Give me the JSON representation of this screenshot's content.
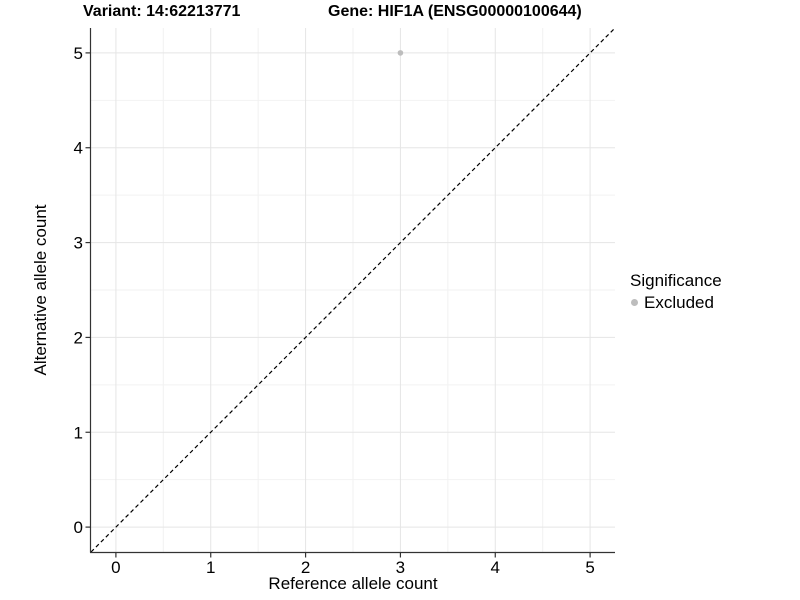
{
  "chart_data": {
    "type": "scatter",
    "title_left": "Variant: 14:62213771",
    "title_right": "Gene: HIF1A (ENSG00000100644)",
    "xlabel": "Reference allele count",
    "ylabel": "Alternative allele count",
    "xlim": [
      -0.2625,
      5.2625
    ],
    "ylim": [
      -0.2625,
      5.2625
    ],
    "xticks": [
      0,
      1,
      2,
      3,
      4,
      5
    ],
    "yticks": [
      0,
      1,
      2,
      3,
      4,
      5
    ],
    "grid": "major+minor",
    "identity_line": {
      "slope": 1,
      "intercept": 0,
      "style": "dashed"
    },
    "points": [
      {
        "x": 3,
        "y": 5,
        "series": "Excluded"
      }
    ],
    "legend": {
      "title": "Significance",
      "position": "right",
      "items": [
        {
          "label": "Excluded",
          "color": "#bdbdbd"
        }
      ]
    },
    "colors": {
      "point": "#bdbdbd",
      "grid_major": "#e5e5e5",
      "grid_minor": "#f2f2f2",
      "axis": "#333333",
      "tick": "#333333",
      "abline": "#000000",
      "text": "#000000",
      "background": "#ffffff"
    },
    "point_radius": 2.8
  }
}
